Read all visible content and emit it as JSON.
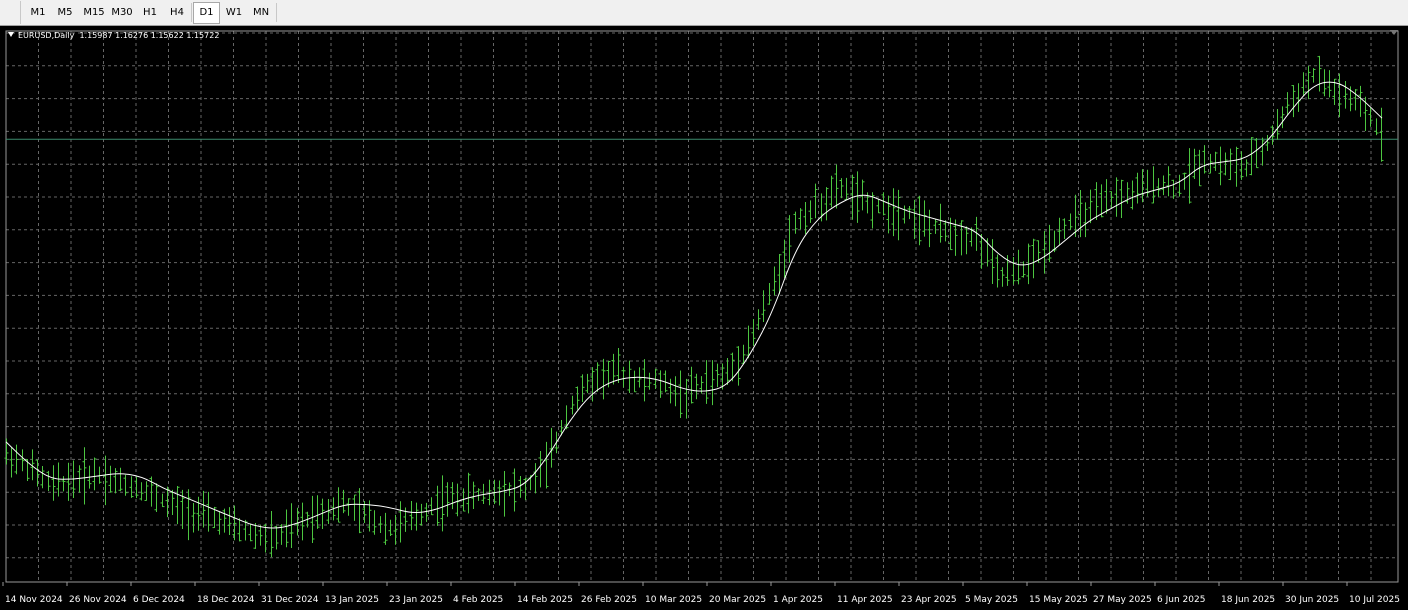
{
  "toolbar": {
    "timeframes": [
      {
        "label": "M1",
        "active": false
      },
      {
        "label": "M5",
        "active": false
      },
      {
        "label": "M15",
        "active": false
      },
      {
        "label": "M30",
        "active": false
      },
      {
        "label": "H1",
        "active": false
      },
      {
        "label": "H4",
        "active": false
      },
      {
        "label": "D1",
        "active": true
      },
      {
        "label": "W1",
        "active": false
      },
      {
        "label": "MN",
        "active": false
      }
    ]
  },
  "chart": {
    "symbol": "EURUSD,Daily",
    "ohlc": "1.15987 1.16276 1.15622 1.15722"
  },
  "colors": {
    "background": "#000000",
    "grid": "#666666",
    "bars": "#4cc640",
    "moving_average": "#ffffff",
    "price_line": "#3c8c6e"
  },
  "chart_data": {
    "type": "ohlc-bar",
    "symbol": "EURUSD",
    "timeframe": "Daily",
    "last_bar": {
      "open": 1.15987,
      "high": 1.16276,
      "low": 1.15622,
      "close": 1.15722
    },
    "x_tick_labels": [
      "14 Nov 2024",
      "26 Nov 2024",
      "6 Dec 2024",
      "18 Dec 2024",
      "31 Dec 2024",
      "13 Jan 2025",
      "23 Jan 2025",
      "4 Feb 2025",
      "14 Feb 2025",
      "26 Feb 2025",
      "10 Mar 2025",
      "20 Mar 2025",
      "1 Apr 2025",
      "11 Apr 2025",
      "23 Apr 2025",
      "5 May 2025",
      "15 May 2025",
      "27 May 2025",
      "6 Jun 2025",
      "18 Jun 2025",
      "30 Jun 2025",
      "10 Jul 2025"
    ],
    "series": [
      {
        "name": "price",
        "points": [
          [
            0,
            1.056
          ],
          [
            10,
            1.052
          ],
          [
            20,
            1.046
          ],
          [
            30,
            1.048
          ],
          [
            40,
            1.05
          ],
          [
            50,
            1.047
          ],
          [
            60,
            1.045
          ],
          [
            70,
            1.041
          ],
          [
            80,
            1.038
          ],
          [
            90,
            1.036
          ],
          [
            100,
            1.033
          ],
          [
            110,
            1.03
          ],
          [
            120,
            1.029
          ],
          [
            130,
            1.034
          ],
          [
            140,
            1.038
          ],
          [
            150,
            1.04
          ],
          [
            160,
            1.036
          ],
          [
            170,
            1.032
          ],
          [
            180,
            1.035
          ],
          [
            190,
            1.04
          ],
          [
            200,
            1.042
          ],
          [
            210,
            1.043
          ],
          [
            220,
            1.045
          ],
          [
            230,
            1.045
          ],
          [
            240,
            1.053
          ],
          [
            250,
            1.072
          ],
          [
            260,
            1.08
          ],
          [
            270,
            1.083
          ],
          [
            280,
            1.08
          ],
          [
            290,
            1.079
          ],
          [
            300,
            1.075
          ],
          [
            310,
            1.079
          ],
          [
            320,
            1.082
          ],
          [
            330,
            1.093
          ],
          [
            340,
            1.11
          ],
          [
            350,
            1.131
          ],
          [
            360,
            1.136
          ],
          [
            370,
            1.142
          ],
          [
            380,
            1.137
          ],
          [
            390,
            1.135
          ],
          [
            400,
            1.134
          ],
          [
            410,
            1.129
          ],
          [
            420,
            1.127
          ],
          [
            430,
            1.126
          ],
          [
            440,
            1.113
          ],
          [
            450,
            1.115
          ],
          [
            460,
            1.122
          ],
          [
            470,
            1.13
          ],
          [
            480,
            1.134
          ],
          [
            490,
            1.138
          ],
          [
            500,
            1.14
          ],
          [
            510,
            1.143
          ],
          [
            520,
            1.142
          ],
          [
            530,
            1.151
          ],
          [
            540,
            1.149
          ],
          [
            550,
            1.148
          ],
          [
            560,
            1.157
          ],
          [
            570,
            1.17
          ],
          [
            580,
            1.178
          ],
          [
            590,
            1.172
          ],
          [
            600,
            1.168
          ],
          [
            610,
            1.159
          ]
        ]
      },
      {
        "name": "moving-average",
        "points": [
          [
            0,
            1.06
          ],
          [
            10,
            1.053
          ],
          [
            20,
            1.048
          ],
          [
            30,
            1.048
          ],
          [
            40,
            1.049
          ],
          [
            50,
            1.05
          ],
          [
            60,
            1.049
          ],
          [
            70,
            1.045
          ],
          [
            80,
            1.042
          ],
          [
            90,
            1.039
          ],
          [
            100,
            1.036
          ],
          [
            110,
            1.033
          ],
          [
            120,
            1.032
          ],
          [
            130,
            1.034
          ],
          [
            140,
            1.037
          ],
          [
            150,
            1.04
          ],
          [
            160,
            1.04
          ],
          [
            170,
            1.039
          ],
          [
            180,
            1.037
          ],
          [
            190,
            1.038
          ],
          [
            200,
            1.041
          ],
          [
            210,
            1.043
          ],
          [
            220,
            1.044
          ],
          [
            230,
            1.046
          ],
          [
            240,
            1.055
          ],
          [
            250,
            1.067
          ],
          [
            260,
            1.076
          ],
          [
            270,
            1.08
          ],
          [
            280,
            1.081
          ],
          [
            290,
            1.08
          ],
          [
            300,
            1.077
          ],
          [
            310,
            1.076
          ],
          [
            320,
            1.078
          ],
          [
            330,
            1.088
          ],
          [
            340,
            1.102
          ],
          [
            350,
            1.122
          ],
          [
            360,
            1.132
          ],
          [
            370,
            1.137
          ],
          [
            380,
            1.14
          ],
          [
            390,
            1.137
          ],
          [
            400,
            1.134
          ],
          [
            410,
            1.132
          ],
          [
            420,
            1.13
          ],
          [
            430,
            1.128
          ],
          [
            440,
            1.12
          ],
          [
            450,
            1.116
          ],
          [
            460,
            1.119
          ],
          [
            470,
            1.125
          ],
          [
            480,
            1.131
          ],
          [
            490,
            1.135
          ],
          [
            500,
            1.139
          ],
          [
            510,
            1.141
          ],
          [
            520,
            1.143
          ],
          [
            530,
            1.149
          ],
          [
            540,
            1.15
          ],
          [
            550,
            1.151
          ],
          [
            560,
            1.157
          ],
          [
            570,
            1.167
          ],
          [
            580,
            1.175
          ],
          [
            590,
            1.176
          ],
          [
            600,
            1.171
          ],
          [
            610,
            1.164
          ]
        ]
      }
    ],
    "grid": true
  }
}
